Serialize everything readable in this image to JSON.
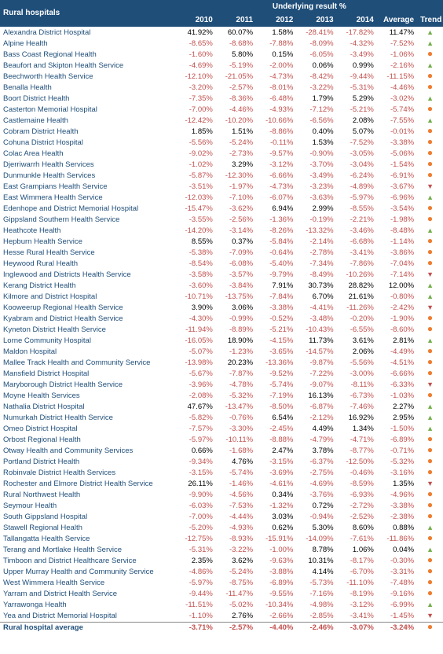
{
  "title_left": "Rural hospitals",
  "title_span": "Underlying result %",
  "years": [
    "2010",
    "2011",
    "2012",
    "2013",
    "2014"
  ],
  "avg_label": "Average",
  "trend_label": "Trend",
  "neg_color": "#c0504d",
  "pos_color": "#000000",
  "header_bg": "#1f4e79",
  "header_fg": "#ffffff",
  "name_color": "#1f4e79",
  "trend_colors": {
    "up": "#70ad47",
    "down": "#c0504d",
    "flat": "#ed7d31"
  },
  "footer_label": "Rural hospital average",
  "footer_values": [
    "-3.71%",
    "-2.57%",
    "-4.40%",
    "-2.46%",
    "-3.07%",
    "-3.24%"
  ],
  "footer_trend": "flat",
  "rows": [
    {
      "name": "Alexandra District Hospital",
      "v": [
        "41.92%",
        "60.07%",
        "1.58%",
        "-28.41%",
        "-17.82%"
      ],
      "avg": "11.47%",
      "t": "up"
    },
    {
      "name": "Alpine Health",
      "v": [
        "-8.65%",
        "-8.68%",
        "-7.88%",
        "-8.09%",
        "-4.32%"
      ],
      "avg": "-7.52%",
      "t": "up"
    },
    {
      "name": "Bass Coast Regional Health",
      "v": [
        "-1.60%",
        "5.80%",
        "0.15%",
        "-6.05%",
        "-3.49%"
      ],
      "avg": "-1.06%",
      "t": "flat"
    },
    {
      "name": "Beaufort and Skipton Health Service",
      "v": [
        "-4.69%",
        "-5.19%",
        "-2.00%",
        "0.06%",
        "0.99%"
      ],
      "avg": "-2.16%",
      "t": "up"
    },
    {
      "name": "Beechworth Health Service",
      "v": [
        "-12.10%",
        "-21.05%",
        "-4.73%",
        "-8.42%",
        "-9.44%"
      ],
      "avg": "-11.15%",
      "t": "flat"
    },
    {
      "name": "Benalla Health",
      "v": [
        "-3.20%",
        "-2.57%",
        "-8.01%",
        "-3.22%",
        "-5.31%"
      ],
      "avg": "-4.46%",
      "t": "flat"
    },
    {
      "name": "Boort District Health",
      "v": [
        "-7.35%",
        "-8.36%",
        "-6.48%",
        "1.79%",
        "5.29%"
      ],
      "avg": "-3.02%",
      "t": "up"
    },
    {
      "name": "Casterton Memorial Hospital",
      "v": [
        "-7.00%",
        "-4.46%",
        "-4.93%",
        "-7.12%",
        "-5.21%"
      ],
      "avg": "-5.74%",
      "t": "flat"
    },
    {
      "name": "Castlemaine Health",
      "v": [
        "-12.42%",
        "-10.20%",
        "-10.66%",
        "-6.56%",
        "2.08%"
      ],
      "avg": "-7.55%",
      "t": "up"
    },
    {
      "name": "Cobram District Health",
      "v": [
        "1.85%",
        "1.51%",
        "-8.86%",
        "0.40%",
        "5.07%"
      ],
      "avg": "-0.01%",
      "t": "flat"
    },
    {
      "name": "Cohuna District Hospital",
      "v": [
        "-5.56%",
        "-5.24%",
        "-0.11%",
        "1.53%",
        "-7.52%"
      ],
      "avg": "-3.38%",
      "t": "flat"
    },
    {
      "name": "Colac Area Health",
      "v": [
        "-9.02%",
        "-2.73%",
        "-9.57%",
        "-0.90%",
        "-3.05%"
      ],
      "avg": "-5.06%",
      "t": "flat"
    },
    {
      "name": "Djerriwarrh Health Services",
      "v": [
        "-1.02%",
        "3.29%",
        "-3.12%",
        "-3.70%",
        "-3.04%"
      ],
      "avg": "-1.54%",
      "t": "flat"
    },
    {
      "name": "Dunmunkle Health Services",
      "v": [
        "-5.87%",
        "-12.30%",
        "-6.66%",
        "-3.49%",
        "-6.24%"
      ],
      "avg": "-6.91%",
      "t": "flat"
    },
    {
      "name": "East Grampians Health Service",
      "v": [
        "-3.51%",
        "-1.97%",
        "-4.73%",
        "-3.23%",
        "-4.89%"
      ],
      "avg": "-3.67%",
      "t": "down"
    },
    {
      "name": "East Wimmera Health Service",
      "v": [
        "-12.03%",
        "-7.10%",
        "-6.07%",
        "-3.63%",
        "-5.97%"
      ],
      "avg": "-6.96%",
      "t": "up"
    },
    {
      "name": "Edenhope and District Memorial Hospital",
      "v": [
        "-15.47%",
        "-3.62%",
        "6.94%",
        "2.99%",
        "-8.55%"
      ],
      "avg": "-3.54%",
      "t": "flat"
    },
    {
      "name": "Gippsland Southern Health Service",
      "v": [
        "-3.55%",
        "-2.56%",
        "-1.36%",
        "-0.19%",
        "-2.21%"
      ],
      "avg": "-1.98%",
      "t": "flat"
    },
    {
      "name": "Heathcote Health",
      "v": [
        "-14.20%",
        "-3.14%",
        "-8.26%",
        "-13.32%",
        "-3.46%"
      ],
      "avg": "-8.48%",
      "t": "up"
    },
    {
      "name": "Hepburn Health Service",
      "v": [
        "8.55%",
        "0.37%",
        "-5.84%",
        "-2.14%",
        "-6.68%"
      ],
      "avg": "-1.14%",
      "t": "flat"
    },
    {
      "name": "Hesse Rural Health Service",
      "v": [
        "-5.38%",
        "-7.09%",
        "-0.64%",
        "-2.78%",
        "-3.41%"
      ],
      "avg": "-3.86%",
      "t": "flat"
    },
    {
      "name": "Heywood Rural Health",
      "v": [
        "-8.54%",
        "-6.08%",
        "-5.40%",
        "-7.34%",
        "-7.86%"
      ],
      "avg": "-7.04%",
      "t": "flat"
    },
    {
      "name": "Inglewood and Districts Health Service",
      "v": [
        "-3.58%",
        "-3.57%",
        "-9.79%",
        "-8.49%",
        "-10.26%"
      ],
      "avg": "-7.14%",
      "t": "down"
    },
    {
      "name": "Kerang District Health",
      "v": [
        "-3.60%",
        "-3.84%",
        "7.91%",
        "30.73%",
        "28.82%"
      ],
      "avg": "12.00%",
      "t": "up"
    },
    {
      "name": "Kilmore and District Hospital",
      "v": [
        "-10.71%",
        "-13.75%",
        "-7.84%",
        "6.70%",
        "21.61%"
      ],
      "avg": "-0.80%",
      "t": "up"
    },
    {
      "name": "Kooweerup Regional Health Service",
      "v": [
        "3.90%",
        "3.06%",
        "-3.38%",
        "-4.41%",
        "-11.26%"
      ],
      "avg": "-2.42%",
      "t": "down"
    },
    {
      "name": "Kyabram and District Health Service",
      "v": [
        "-4.30%",
        "-0.99%",
        "-0.52%",
        "-3.48%",
        "-0.20%"
      ],
      "avg": "-1.90%",
      "t": "flat"
    },
    {
      "name": "Kyneton District Health Service",
      "v": [
        "-11.94%",
        "-8.89%",
        "-5.21%",
        "-10.43%",
        "-6.55%"
      ],
      "avg": "-8.60%",
      "t": "flat"
    },
    {
      "name": "Lorne Community Hospital",
      "v": [
        "-16.05%",
        "18.90%",
        "-4.15%",
        "11.73%",
        "3.61%"
      ],
      "avg": "2.81%",
      "t": "up"
    },
    {
      "name": "Maldon Hospital",
      "v": [
        "-5.07%",
        "-1.23%",
        "-3.65%",
        "-14.57%",
        "2.06%"
      ],
      "avg": "-4.49%",
      "t": "flat"
    },
    {
      "name": "Mallee Track Health and Community Service",
      "v": [
        "-13.98%",
        "20.23%",
        "-13.36%",
        "-9.87%",
        "-5.56%"
      ],
      "avg": "-4.51%",
      "t": "flat"
    },
    {
      "name": "Mansfield District Hospital",
      "v": [
        "-5.67%",
        "-7.87%",
        "-9.52%",
        "-7.22%",
        "-3.00%"
      ],
      "avg": "-6.66%",
      "t": "flat"
    },
    {
      "name": "Maryborough District Health Service",
      "v": [
        "-3.96%",
        "-4.78%",
        "-5.74%",
        "-9.07%",
        "-8.11%"
      ],
      "avg": "-6.33%",
      "t": "down"
    },
    {
      "name": "Moyne Health Services",
      "v": [
        "-2.08%",
        "-5.32%",
        "-7.19%",
        "16.13%",
        "-6.73%"
      ],
      "avg": "-1.03%",
      "t": "flat"
    },
    {
      "name": "Nathalia District Hospital",
      "v": [
        "47.67%",
        "-13.47%",
        "-8.50%",
        "-6.87%",
        "-7.46%"
      ],
      "avg": "2.27%",
      "t": "up"
    },
    {
      "name": "Numurkah District Health Service",
      "v": [
        "-5.82%",
        "-0.76%",
        "6.54%",
        "-2.12%",
        "16.92%"
      ],
      "avg": "2.95%",
      "t": "up"
    },
    {
      "name": "Omeo District Hospital",
      "v": [
        "-7.57%",
        "-3.30%",
        "-2.45%",
        "4.49%",
        "1.34%"
      ],
      "avg": "-1.50%",
      "t": "up"
    },
    {
      "name": "Orbost Regional Health",
      "v": [
        "-5.97%",
        "-10.11%",
        "-8.88%",
        "-4.79%",
        "-4.71%"
      ],
      "avg": "-6.89%",
      "t": "flat"
    },
    {
      "name": "Otway Health and Community Services",
      "v": [
        "0.66%",
        "-1.68%",
        "2.47%",
        "3.78%",
        "-8.77%"
      ],
      "avg": "-0.71%",
      "t": "flat"
    },
    {
      "name": "Portland District Health",
      "v": [
        "-9.34%",
        "4.76%",
        "-3.15%",
        "-6.37%",
        "-12.50%"
      ],
      "avg": "-5.32%",
      "t": "flat"
    },
    {
      "name": "Robinvale District Health Services",
      "v": [
        "-3.15%",
        "-5.74%",
        "-3.69%",
        "-2.75%",
        "-0.46%"
      ],
      "avg": "-3.16%",
      "t": "flat"
    },
    {
      "name": "Rochester and Elmore District Health Service",
      "v": [
        "26.11%",
        "-1.46%",
        "-4.61%",
        "-4.69%",
        "-8.59%"
      ],
      "avg": "1.35%",
      "t": "down"
    },
    {
      "name": "Rural Northwest Health",
      "v": [
        "-9.90%",
        "-4.56%",
        "0.34%",
        "-3.76%",
        "-6.93%"
      ],
      "avg": "-4.96%",
      "t": "flat"
    },
    {
      "name": "Seymour Health",
      "v": [
        "-6.03%",
        "-7.53%",
        "-1.32%",
        "0.72%",
        "-2.72%"
      ],
      "avg": "-3.38%",
      "t": "flat"
    },
    {
      "name": "South Gippsland Hospital",
      "v": [
        "-7.00%",
        "-4.44%",
        "3.03%",
        "-0.94%",
        "-2.52%"
      ],
      "avg": "-2.38%",
      "t": "flat"
    },
    {
      "name": "Stawell Regional Health",
      "v": [
        "-5.20%",
        "-4.93%",
        "0.62%",
        "5.30%",
        "8.60%"
      ],
      "avg": "0.88%",
      "t": "up"
    },
    {
      "name": "Tallangatta Health Service",
      "v": [
        "-12.75%",
        "-8.93%",
        "-15.91%",
        "-14.09%",
        "-7.61%"
      ],
      "avg": "-11.86%",
      "t": "flat"
    },
    {
      "name": "Terang and Mortlake Health Service",
      "v": [
        "-5.31%",
        "-3.22%",
        "-1.00%",
        "8.78%",
        "1.06%"
      ],
      "avg": "0.04%",
      "t": "up"
    },
    {
      "name": "Timboon and District Healthcare Service",
      "v": [
        "2.35%",
        "3.62%",
        "-9.63%",
        "10.31%",
        "-8.17%"
      ],
      "avg": "-0.30%",
      "t": "flat"
    },
    {
      "name": "Upper Murray Health and Community Service",
      "v": [
        "-4.86%",
        "-5.24%",
        "-3.88%",
        "4.14%",
        "-6.70%"
      ],
      "avg": "-3.31%",
      "t": "flat"
    },
    {
      "name": "West Wimmera Health Service",
      "v": [
        "-5.97%",
        "-8.75%",
        "-6.89%",
        "-5.73%",
        "-11.10%"
      ],
      "avg": "-7.48%",
      "t": "flat"
    },
    {
      "name": "Yarram and District Health Service",
      "v": [
        "-9.44%",
        "-11.47%",
        "-9.55%",
        "-7.16%",
        "-8.19%"
      ],
      "avg": "-9.16%",
      "t": "flat"
    },
    {
      "name": "Yarrawonga Health",
      "v": [
        "-11.51%",
        "-5.02%",
        "-10.34%",
        "-4.98%",
        "-3.12%"
      ],
      "avg": "-6.99%",
      "t": "up"
    },
    {
      "name": "Yea and District Memorial Hospital",
      "v": [
        "-1.10%",
        "2.76%",
        "-2.66%",
        "-2.85%",
        "-3.41%"
      ],
      "avg": "-1.45%",
      "t": "down"
    }
  ]
}
